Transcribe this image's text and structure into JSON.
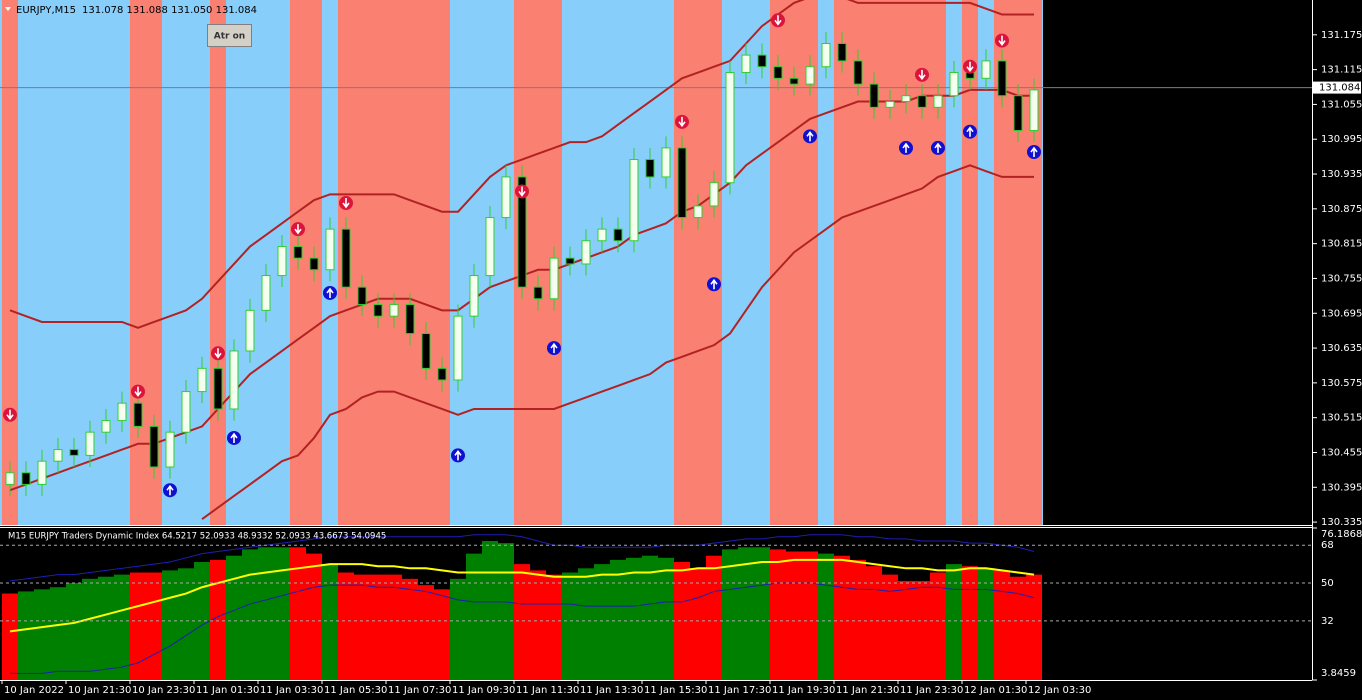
{
  "chart_data": [
    {
      "type": "candlestick",
      "title": "EURJPY,M15",
      "subtitle": "131.078 131.088 131.050 131.084",
      "button": "Atr on",
      "categories": [
        "10 Jan 2022",
        null,
        null,
        null,
        "10 Jan 21:30",
        null,
        null,
        null,
        "10 Jan 23:30",
        null,
        null,
        null,
        "11 Jan 01:30",
        null,
        null,
        null,
        "11 Jan 03:30",
        null,
        null,
        null,
        "11 Jan 05:30",
        null,
        null,
        null,
        "11 Jan 07:30",
        null,
        null,
        null,
        "11 Jan 09:30",
        null,
        null,
        null,
        "11 Jan 11:30",
        null,
        null,
        null,
        "11 Jan 13:30",
        null,
        null,
        null,
        "11 Jan 15:30",
        null,
        null,
        null,
        "11 Jan 17:30",
        null,
        null,
        null,
        "11 Jan 19:30",
        null,
        null,
        null,
        "11 Jan 21:30",
        null,
        null,
        null,
        "11 Jan 23:30",
        null,
        null,
        null,
        "12 Jan 01:30",
        null,
        null,
        null,
        "12 Jan 03:30"
      ],
      "open": [
        130.4,
        130.42,
        130.4,
        130.44,
        130.46,
        130.45,
        130.49,
        130.51,
        130.54,
        130.5,
        130.43,
        130.49,
        130.56,
        130.6,
        130.53,
        130.63,
        130.7,
        130.76,
        130.81,
        130.79,
        130.77,
        130.84,
        130.74,
        130.71,
        130.69,
        130.71,
        130.66,
        130.6,
        130.58,
        130.69,
        130.76,
        130.86,
        130.93,
        130.74,
        130.72,
        130.79,
        130.78,
        130.82,
        130.84,
        130.82,
        130.96,
        130.93,
        130.98,
        130.86,
        130.88,
        130.92,
        131.11,
        131.14,
        131.12,
        131.1,
        131.09,
        131.12,
        131.16,
        131.13,
        131.09,
        131.05,
        131.06,
        131.07,
        131.05,
        131.07,
        131.11,
        131.1,
        131.13,
        131.07,
        131.01
      ],
      "high": [
        130.44,
        130.44,
        130.46,
        130.48,
        130.48,
        130.51,
        130.53,
        130.56,
        130.56,
        130.52,
        130.51,
        130.58,
        130.62,
        130.62,
        130.65,
        130.72,
        130.78,
        130.83,
        130.83,
        130.81,
        130.86,
        130.86,
        130.76,
        130.73,
        130.73,
        130.73,
        130.68,
        130.62,
        130.71,
        130.78,
        130.88,
        130.95,
        130.95,
        130.76,
        130.81,
        130.81,
        130.84,
        130.86,
        130.86,
        130.98,
        130.98,
        131.0,
        131.0,
        130.9,
        130.94,
        131.13,
        131.16,
        131.16,
        131.14,
        131.12,
        131.14,
        131.18,
        131.18,
        131.15,
        131.11,
        131.08,
        131.09,
        131.09,
        131.09,
        131.13,
        131.13,
        131.15,
        131.15,
        131.09,
        131.1
      ],
      "low": [
        130.38,
        130.38,
        130.38,
        130.42,
        130.43,
        130.43,
        130.47,
        130.49,
        130.48,
        130.41,
        130.41,
        130.47,
        130.54,
        130.51,
        130.51,
        130.61,
        130.68,
        130.74,
        130.77,
        130.75,
        130.75,
        130.72,
        130.69,
        130.67,
        130.67,
        130.64,
        130.58,
        130.56,
        130.56,
        130.67,
        130.74,
        130.84,
        130.72,
        130.7,
        130.7,
        130.76,
        130.76,
        130.8,
        130.8,
        130.8,
        130.91,
        130.91,
        130.84,
        130.84,
        130.86,
        130.9,
        131.09,
        131.1,
        131.08,
        131.07,
        131.07,
        131.1,
        131.11,
        131.07,
        131.03,
        131.03,
        131.04,
        131.03,
        131.03,
        131.05,
        131.08,
        131.08,
        131.05,
        130.99,
        130.99
      ],
      "close": [
        130.42,
        130.4,
        130.44,
        130.46,
        130.45,
        130.49,
        130.51,
        130.54,
        130.5,
        130.43,
        130.49,
        130.56,
        130.6,
        130.53,
        130.63,
        130.7,
        130.76,
        130.81,
        130.79,
        130.77,
        130.84,
        130.74,
        130.71,
        130.69,
        130.71,
        130.66,
        130.6,
        130.58,
        130.69,
        130.76,
        130.86,
        130.93,
        130.74,
        130.72,
        130.79,
        130.78,
        130.82,
        130.84,
        130.82,
        130.96,
        130.93,
        130.98,
        130.86,
        130.88,
        130.92,
        131.11,
        131.14,
        131.12,
        131.1,
        131.09,
        131.12,
        131.16,
        131.13,
        131.09,
        131.05,
        131.06,
        131.07,
        131.05,
        131.07,
        131.11,
        131.1,
        131.13,
        131.07,
        131.01,
        131.08
      ],
      "band_color": "#b22222",
      "upper": [
        130.7,
        130.69,
        130.68,
        130.68,
        130.68,
        130.68,
        130.68,
        130.68,
        130.67,
        130.68,
        130.69,
        130.7,
        130.72,
        130.75,
        130.78,
        130.81,
        130.83,
        130.85,
        130.87,
        130.89,
        130.9,
        130.9,
        130.9,
        130.9,
        130.9,
        130.89,
        130.88,
        130.87,
        130.87,
        130.9,
        130.93,
        130.95,
        130.96,
        130.97,
        130.98,
        130.99,
        130.99,
        131.0,
        131.02,
        131.04,
        131.06,
        131.08,
        131.1,
        131.11,
        131.12,
        131.13,
        131.16,
        131.19,
        131.21,
        131.23,
        131.24,
        131.24,
        131.24,
        131.23,
        131.23,
        131.23,
        131.23,
        131.23,
        131.23,
        131.23,
        131.23,
        131.22,
        131.21,
        131.21,
        131.21
      ],
      "middle": [
        130.39,
        130.4,
        130.41,
        130.42,
        130.43,
        130.44,
        130.45,
        130.46,
        130.47,
        130.47,
        130.48,
        130.49,
        130.5,
        130.53,
        130.56,
        130.59,
        130.61,
        130.63,
        130.65,
        130.67,
        130.69,
        130.7,
        130.71,
        130.72,
        130.72,
        130.72,
        130.71,
        130.7,
        130.7,
        130.72,
        130.74,
        130.75,
        130.76,
        130.77,
        130.77,
        130.78,
        130.79,
        130.8,
        130.81,
        130.83,
        130.84,
        130.85,
        130.87,
        130.88,
        130.9,
        130.92,
        130.95,
        130.97,
        130.99,
        131.01,
        131.03,
        131.04,
        131.05,
        131.06,
        131.06,
        131.06,
        131.06,
        131.07,
        131.07,
        131.07,
        131.08,
        131.08,
        131.08,
        131.07,
        131.07
      ],
      "lower": [
        null,
        null,
        null,
        null,
        null,
        null,
        null,
        null,
        null,
        null,
        null,
        null,
        130.34,
        130.36,
        130.38,
        130.4,
        130.42,
        130.44,
        130.45,
        130.48,
        130.52,
        130.53,
        130.55,
        130.56,
        130.56,
        130.55,
        130.54,
        130.53,
        130.52,
        130.53,
        130.53,
        130.53,
        130.53,
        130.53,
        130.53,
        130.54,
        130.55,
        130.56,
        130.57,
        130.58,
        130.59,
        130.61,
        130.62,
        130.63,
        130.64,
        130.66,
        130.7,
        130.74,
        130.77,
        130.8,
        130.82,
        130.84,
        130.86,
        130.87,
        130.88,
        130.89,
        130.9,
        130.91,
        130.93,
        130.94,
        130.95,
        130.94,
        130.93,
        130.93,
        130.93
      ],
      "buy_arrows": [
        null,
        null,
        null,
        null,
        null,
        null,
        null,
        null,
        null,
        null,
        130.39,
        null,
        null,
        null,
        130.48,
        null,
        null,
        null,
        null,
        null,
        130.73,
        null,
        null,
        null,
        null,
        null,
        null,
        null,
        130.45,
        null,
        null,
        null,
        null,
        null,
        130.635,
        null,
        null,
        null,
        null,
        null,
        null,
        null,
        null,
        null,
        130.745,
        null,
        null,
        null,
        null,
        null,
        131.0,
        null,
        null,
        null,
        null,
        null,
        130.98,
        null,
        130.98,
        null,
        131.008,
        null,
        null,
        null,
        130.973
      ],
      "sell_arrows": [
        130.52,
        null,
        null,
        null,
        null,
        null,
        null,
        null,
        130.56,
        null,
        null,
        null,
        null,
        130.626,
        null,
        null,
        null,
        null,
        130.84,
        null,
        null,
        130.885,
        null,
        null,
        null,
        null,
        null,
        null,
        null,
        null,
        null,
        null,
        130.905,
        null,
        null,
        null,
        null,
        null,
        null,
        null,
        null,
        null,
        131.025,
        null,
        null,
        null,
        null,
        null,
        131.2,
        null,
        null,
        null,
        null,
        null,
        null,
        null,
        null,
        131.106,
        null,
        null,
        131.12,
        null,
        131.165,
        null,
        null
      ],
      "buy_color": "#1010d0",
      "sell_color": "#dc143c",
      "zone_colors": {
        "up": "#87cefa",
        "down": "#fa8072"
      },
      "down_zones": [
        [
          0,
          0
        ],
        [
          8,
          9
        ],
        [
          13,
          13
        ],
        [
          18,
          19
        ],
        [
          21,
          27
        ],
        [
          32,
          34
        ],
        [
          42,
          44
        ],
        [
          48,
          50
        ],
        [
          52,
          56
        ],
        [
          57,
          58
        ],
        [
          60,
          60
        ],
        [
          62,
          64
        ]
      ],
      "last_price": 131.084,
      "ylim": [
        130.33,
        131.235
      ],
      "yticks": [
        131.175,
        131.115,
        131.055,
        130.995,
        130.935,
        130.875,
        130.815,
        130.755,
        130.695,
        130.635,
        130.575,
        130.515,
        130.455,
        130.395,
        130.335
      ]
    },
    {
      "type": "area",
      "title": "M15 EURJPY Traders Dynamic Index 64.5217 52.0933 48.9332 52.0933 43.6673 54.0945",
      "ylim": [
        3.8459,
        76.1868
      ],
      "yticks": [
        76.1868,
        68,
        50,
        32,
        3.8459
      ],
      "up_color": "#008000",
      "down_color": "#ff0000",
      "signal_color": "#ffff00",
      "band_color": "#1e1eb4",
      "rsi": [
        45,
        46,
        47,
        48,
        50,
        52,
        53,
        54,
        55,
        55,
        56,
        57,
        60,
        61,
        63,
        66,
        67,
        67,
        67,
        64,
        59,
        55,
        54,
        54,
        54,
        52,
        49,
        47,
        52,
        64,
        70,
        69,
        59,
        56,
        54,
        55,
        57,
        59,
        61,
        62,
        63,
        62,
        60,
        57,
        63,
        66,
        67,
        67,
        66,
        65,
        65,
        64,
        63,
        61,
        58,
        54,
        51,
        51,
        55,
        59,
        58,
        57,
        56,
        53,
        54
      ],
      "signal": [
        27,
        28,
        29,
        30,
        31,
        33,
        35,
        37,
        39,
        41,
        43,
        45,
        48,
        50,
        52,
        54,
        55,
        56,
        57,
        58,
        59,
        59,
        59,
        58,
        58,
        57,
        57,
        56,
        55,
        55,
        55,
        55,
        55,
        54,
        53,
        53,
        53,
        54,
        54,
        55,
        55,
        56,
        56,
        57,
        57,
        58,
        59,
        60,
        60,
        61,
        61,
        61,
        61,
        60,
        59,
        58,
        57,
        57,
        56,
        56,
        57,
        57,
        56,
        55,
        54
      ],
      "upper": [
        51,
        52,
        53,
        54,
        54,
        55,
        56,
        57,
        58,
        59,
        60,
        62,
        64,
        65,
        66,
        67,
        68,
        69,
        70,
        71,
        72,
        72,
        72,
        72,
        72,
        72,
        72,
        72,
        72,
        73,
        73,
        73,
        72,
        70,
        68,
        68,
        67,
        67,
        67,
        67,
        67,
        68,
        68,
        68,
        69,
        70,
        71,
        71,
        72,
        72,
        73,
        73,
        73,
        72,
        72,
        71,
        71,
        70,
        70,
        70,
        69,
        69,
        68,
        67,
        65
      ],
      "lower": [
        7,
        7,
        7,
        8,
        8,
        8,
        9,
        10,
        12,
        16,
        20,
        25,
        30,
        34,
        37,
        40,
        42,
        44,
        46,
        48,
        49,
        49,
        49,
        48,
        48,
        47,
        46,
        44,
        42,
        41,
        41,
        41,
        40,
        40,
        40,
        40,
        39,
        39,
        39,
        39,
        40,
        41,
        41,
        43,
        46,
        47,
        48,
        49,
        50,
        50,
        50,
        49,
        48,
        47,
        47,
        46,
        47,
        48,
        48,
        47,
        47,
        47,
        46,
        45,
        43
      ]
    }
  ]
}
